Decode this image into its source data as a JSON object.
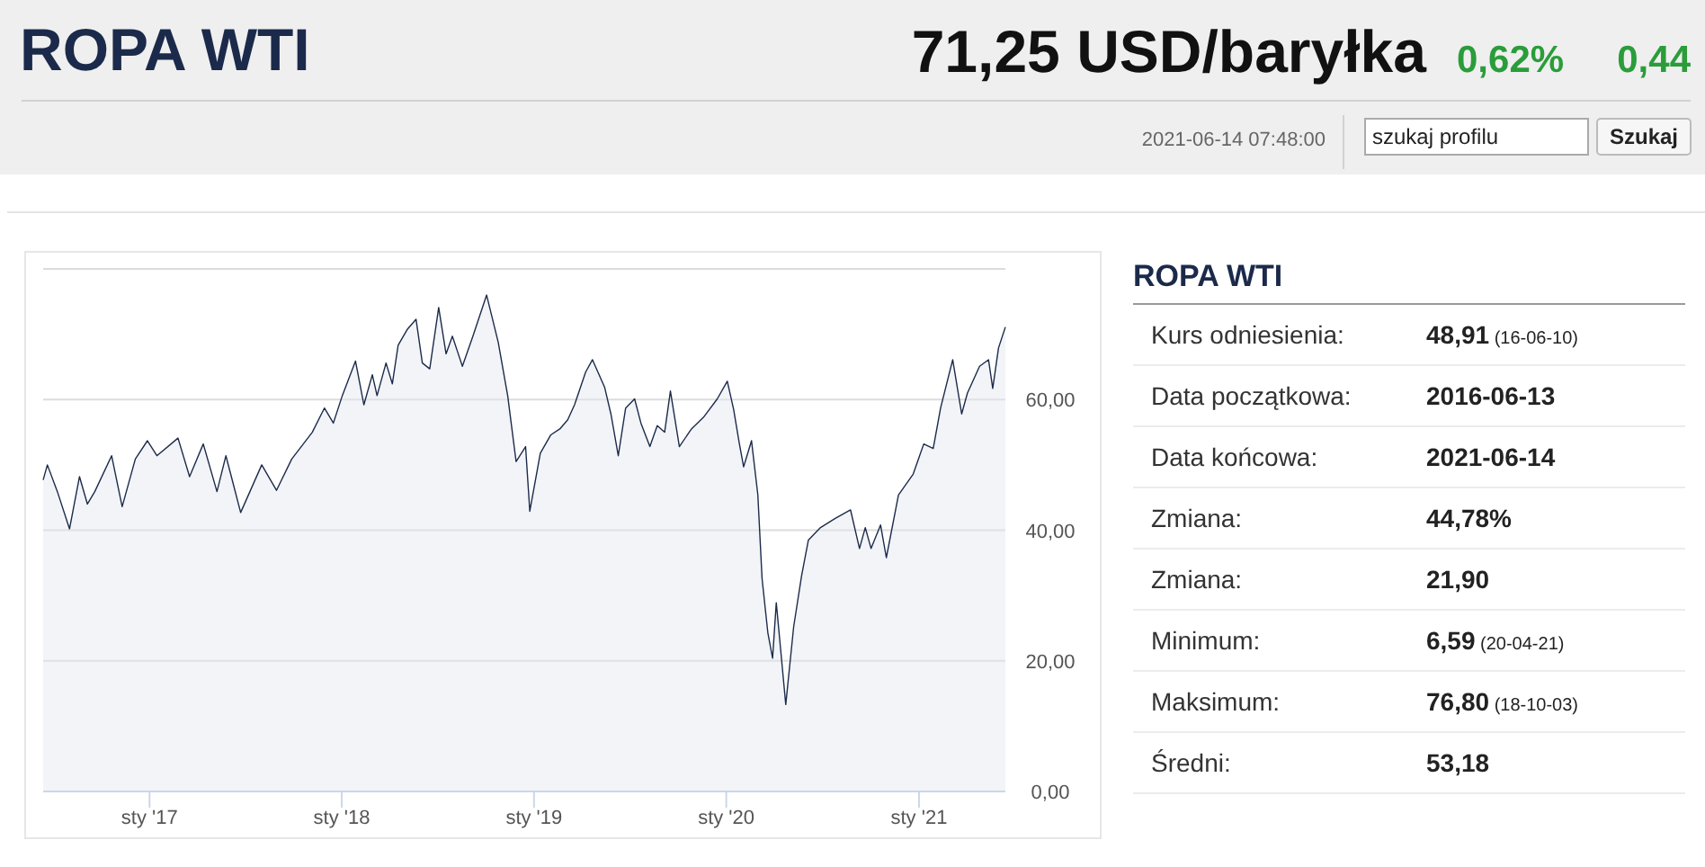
{
  "chart_data": [
    {
      "type": "area",
      "title": "ROPA WTI",
      "annotations": [
        "71,25 USD/baryłka",
        "0,62%",
        "0,44",
        "2021-06-14 07:48:00",
        "szukaj profilu",
        "Szukaj"
      ],
      "xlim": [
        "2016-06-13",
        "2021-06-14"
      ],
      "xticks": [
        {
          "value": "2017-01-01",
          "label": "sty '17"
        },
        {
          "value": "2018-01-01",
          "label": "sty '18"
        },
        {
          "value": "2019-01-01",
          "label": "sty '19"
        },
        {
          "value": "2020-01-01",
          "label": "sty '20"
        },
        {
          "value": "2021-01-01",
          "label": "sty '21"
        }
      ],
      "ylim": [
        0,
        80
      ],
      "yticks": [
        {
          "value": 0,
          "label": "0,00"
        },
        {
          "value": 20,
          "label": "20,00"
        },
        {
          "value": 40,
          "label": "40,00"
        },
        {
          "value": 60,
          "label": "60,00"
        },
        {
          "value": 80,
          "label": null
        }
      ],
      "grid": "y",
      "series": [
        {
          "color": "#1c2b4a",
          "x": [
            "2016-06-13",
            "2016-06-21",
            "2016-07-10",
            "2016-08-02",
            "2016-08-21",
            "2016-09-05",
            "2016-09-19",
            "2016-10-21",
            "2016-11-10",
            "2016-12-05",
            "2016-12-28",
            "2017-01-15",
            "2017-02-24",
            "2017-03-18",
            "2017-04-13",
            "2017-05-09",
            "2017-05-26",
            "2017-06-23",
            "2017-08-02",
            "2017-08-30",
            "2017-09-28",
            "2017-11-06",
            "2017-11-29",
            "2017-12-16",
            "2018-01-02",
            "2018-01-27",
            "2018-02-12",
            "2018-02-28",
            "2018-03-09",
            "2018-03-26",
            "2018-04-07",
            "2018-04-18",
            "2018-05-05",
            "2018-05-22",
            "2018-06-03",
            "2018-06-17",
            "2018-07-04",
            "2018-07-18",
            "2018-07-30",
            "2018-08-18",
            "2018-09-07",
            "2018-10-03",
            "2018-10-25",
            "2018-11-12",
            "2018-11-28",
            "2018-12-16",
            "2018-12-24",
            "2019-01-13",
            "2019-02-02",
            "2019-02-19",
            "2019-03-06",
            "2019-03-19",
            "2019-04-09",
            "2019-04-22",
            "2019-05-15",
            "2019-05-27",
            "2019-06-10",
            "2019-06-24",
            "2019-07-11",
            "2019-07-23",
            "2019-08-09",
            "2019-08-23",
            "2019-09-06",
            "2019-09-17",
            "2019-10-04",
            "2019-10-27",
            "2019-11-19",
            "2019-12-15",
            "2020-01-03",
            "2020-01-15",
            "2020-01-26",
            "2020-02-03",
            "2020-02-18",
            "2020-03-01",
            "2020-03-09",
            "2020-03-20",
            "2020-03-29",
            "2020-04-05",
            "2020-04-13",
            "2020-04-23",
            "2020-05-08",
            "2020-05-23",
            "2020-06-05",
            "2020-06-28",
            "2020-07-26",
            "2020-08-24",
            "2020-09-10",
            "2020-09-21",
            "2020-10-02",
            "2020-10-20",
            "2020-10-31",
            "2020-11-23",
            "2020-12-21",
            "2021-01-10",
            "2021-01-28",
            "2021-02-11",
            "2021-03-06",
            "2021-03-23",
            "2021-04-03",
            "2021-04-26",
            "2021-05-13",
            "2021-05-21",
            "2021-06-01",
            "2021-06-14"
          ],
          "values": [
            47.7,
            50.0,
            45.9,
            40.2,
            48.2,
            44.0,
            45.9,
            51.4,
            43.6,
            50.9,
            53.7,
            51.4,
            54.1,
            48.2,
            53.2,
            45.9,
            51.4,
            42.7,
            50.0,
            46.1,
            50.9,
            55.0,
            58.7,
            56.4,
            60.6,
            65.9,
            59.2,
            63.8,
            60.6,
            65.6,
            62.4,
            68.3,
            70.7,
            72.3,
            65.6,
            64.7,
            74.1,
            67.0,
            69.7,
            65.1,
            69.7,
            76.0,
            68.8,
            60.6,
            50.5,
            52.8,
            42.9,
            51.8,
            54.6,
            55.5,
            56.9,
            59.2,
            64.2,
            66.1,
            61.9,
            57.8,
            51.4,
            58.7,
            60.1,
            56.4,
            52.8,
            56.0,
            55.0,
            61.3,
            52.8,
            55.5,
            57.3,
            60.1,
            62.8,
            58.5,
            53.2,
            49.7,
            53.7,
            45.4,
            32.6,
            24.3,
            20.4,
            28.9,
            22.0,
            13.3,
            25.2,
            33.0,
            38.5,
            40.4,
            41.8,
            43.1,
            37.2,
            40.4,
            37.2,
            40.8,
            35.8,
            45.4,
            48.6,
            53.2,
            52.5,
            58.7,
            66.1,
            57.8,
            61.0,
            65.1,
            66.1,
            61.7,
            67.9,
            71.1
          ]
        }
      ]
    },
    {
      "type": "other",
      "title": "ROPA WTI",
      "annotations": [
        "Kurs odniesienia:",
        "Data początkowa:",
        "Data końcowa:",
        "Zmiana:",
        "Zmiana:",
        "Minimum:",
        "Maksimum:",
        "Średni:"
      ],
      "value_labels": [
        "48,91 (16-06-10)",
        "2016-06-13",
        "2021-06-14",
        "44,78%",
        "21,90",
        "6,59 (20-04-21)",
        "76,80 (18-10-03)",
        "53,18"
      ]
    }
  ]
}
